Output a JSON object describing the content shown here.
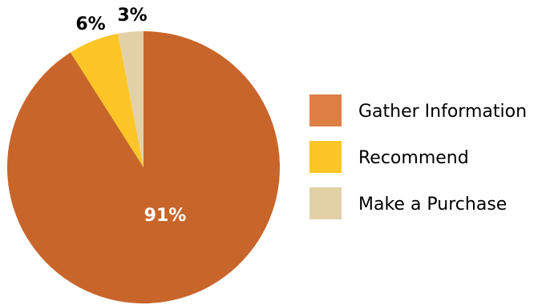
{
  "chart_data": {
    "type": "pie",
    "categories": [
      "Gather Information",
      "Recommend",
      "Make a Purchase"
    ],
    "values": [
      91,
      6,
      3
    ],
    "value_labels": [
      "91%",
      "6%",
      "3%"
    ],
    "colors": [
      "#C8652A",
      "#FDC626",
      "#E2D1A7"
    ],
    "legend_swatch_colors": [
      "#DD7F45",
      "#FDC626",
      "#E2D1A7"
    ],
    "label_colors": [
      "#FFFFFF",
      "#000000",
      "#000000"
    ],
    "legend_position": "right",
    "start_angle_deg": 0,
    "direction": "clockwise"
  }
}
